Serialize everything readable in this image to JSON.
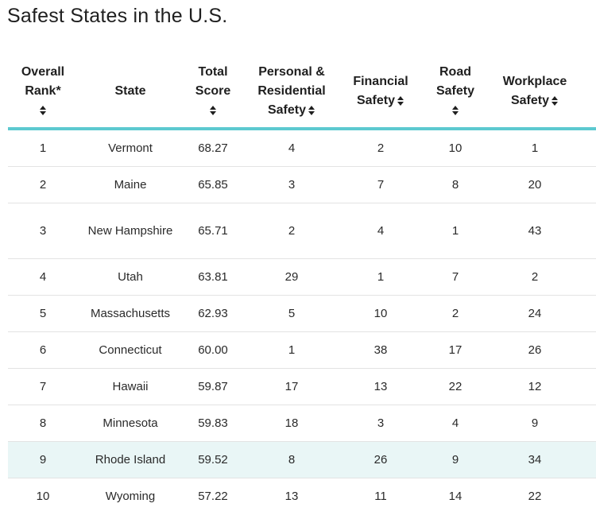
{
  "page": {
    "title": "Safest States in the U.S."
  },
  "table": {
    "headers": {
      "rank": [
        "Overall",
        "Rank*"
      ],
      "state": "State",
      "total": [
        "Total",
        "Score"
      ],
      "personal": [
        "Personal &",
        "Residential",
        "Safety"
      ],
      "financial": [
        "Financial",
        "Safety"
      ],
      "road": [
        "Road",
        "Safety"
      ],
      "workplace": [
        "Workplace",
        "Safety"
      ]
    },
    "rows": [
      {
        "rank": "1",
        "state": "Vermont",
        "total": "68.27",
        "personal": "4",
        "financial": "2",
        "road": "10",
        "workplace": "1"
      },
      {
        "rank": "2",
        "state": "Maine",
        "total": "65.85",
        "personal": "3",
        "financial": "7",
        "road": "8",
        "workplace": "20"
      },
      {
        "rank": "3",
        "state": "New Hampshire",
        "total": "65.71",
        "personal": "2",
        "financial": "4",
        "road": "1",
        "workplace": "43"
      },
      {
        "rank": "4",
        "state": "Utah",
        "total": "63.81",
        "personal": "29",
        "financial": "1",
        "road": "7",
        "workplace": "2"
      },
      {
        "rank": "5",
        "state": "Massachusetts",
        "total": "62.93",
        "personal": "5",
        "financial": "10",
        "road": "2",
        "workplace": "24"
      },
      {
        "rank": "6",
        "state": "Connecticut",
        "total": "60.00",
        "personal": "1",
        "financial": "38",
        "road": "17",
        "workplace": "26"
      },
      {
        "rank": "7",
        "state": "Hawaii",
        "total": "59.87",
        "personal": "17",
        "financial": "13",
        "road": "22",
        "workplace": "12"
      },
      {
        "rank": "8",
        "state": "Minnesota",
        "total": "59.83",
        "personal": "18",
        "financial": "3",
        "road": "4",
        "workplace": "9"
      },
      {
        "rank": "9",
        "state": "Rhode Island",
        "total": "59.52",
        "personal": "8",
        "financial": "26",
        "road": "9",
        "workplace": "34"
      },
      {
        "rank": "10",
        "state": "Wyoming",
        "total": "57.22",
        "personal": "13",
        "financial": "11",
        "road": "14",
        "workplace": "22"
      }
    ],
    "highlighted_rank": "9"
  },
  "colors": {
    "header_rule": "#5cc9d0",
    "highlight_row": "#e9f6f6"
  },
  "icons": {
    "sort": "sort-updown-icon"
  }
}
